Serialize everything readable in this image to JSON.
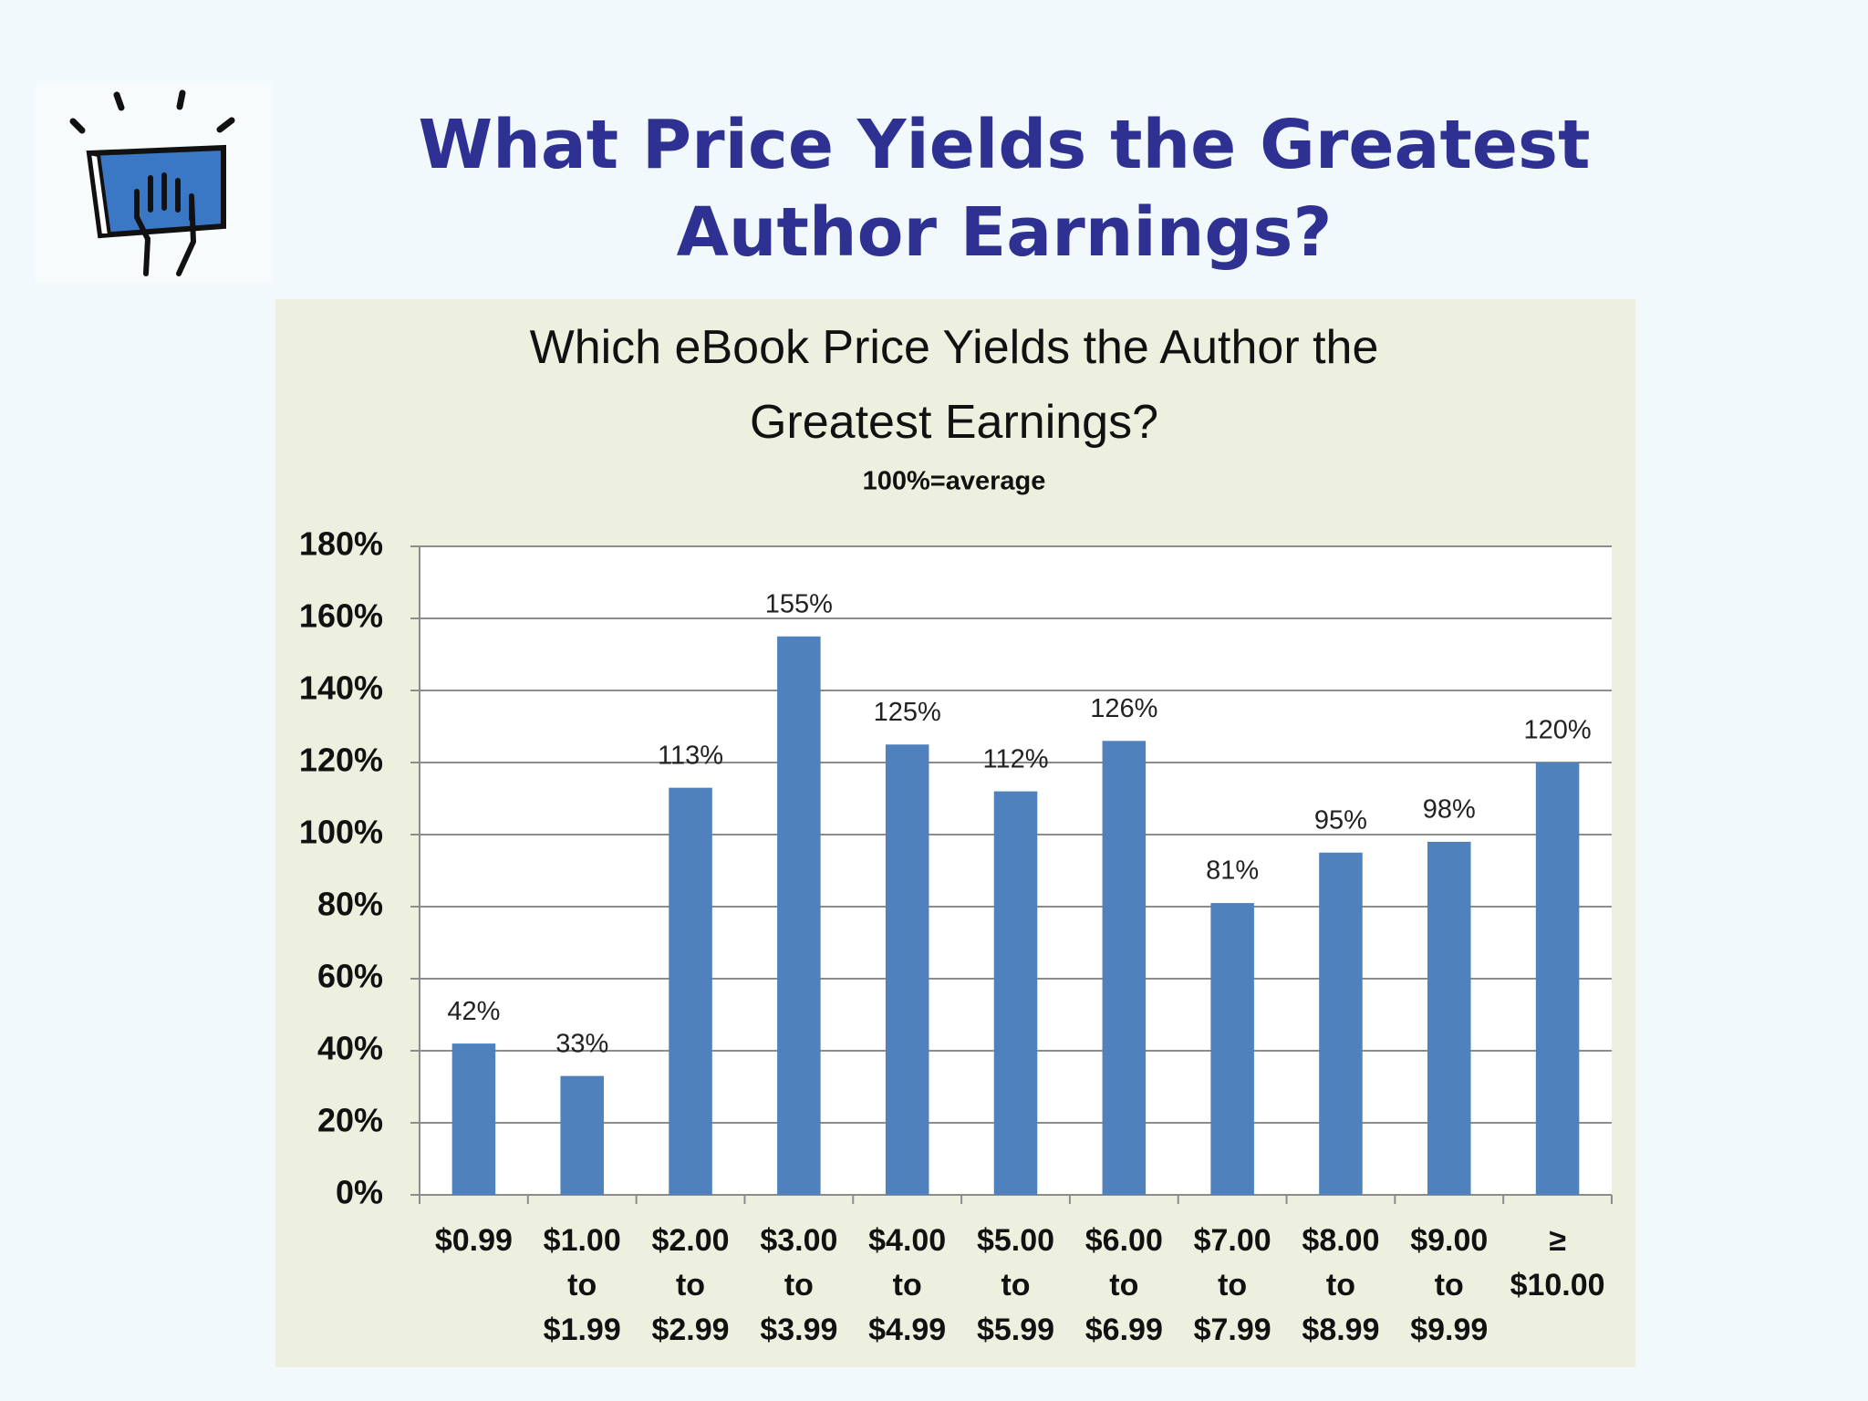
{
  "slide_title": "What Price Yields the Greatest Author Earnings?",
  "chart_data": {
    "type": "bar",
    "title": "Which eBook Price Yields the Author the Greatest Earnings?",
    "subtitle": "100%=average",
    "categories": [
      "$0.99",
      "$1.00 to $1.99",
      "$2.00 to $2.99",
      "$3.00 to $3.99",
      "$4.00 to $4.99",
      "$5.00 to $5.99",
      "$6.00 to $6.99",
      "$7.00 to $7.99",
      "$8.00 to $8.99",
      "$9.00 to $9.99",
      "≥ $10.00"
    ],
    "values": [
      42,
      33,
      113,
      155,
      125,
      112,
      126,
      81,
      95,
      98,
      120
    ],
    "value_labels": [
      "42%",
      "33%",
      "113%",
      "155%",
      "125%",
      "112%",
      "126%",
      "81%",
      "95%",
      "98%",
      "120%"
    ],
    "color": "#4f81bd",
    "ylim": [
      0,
      180
    ],
    "yticks": [
      {
        "value": 0,
        "label": "0%"
      },
      {
        "value": 20,
        "label": "20%"
      },
      {
        "value": 40,
        "label": "40%"
      },
      {
        "value": 60,
        "label": "60%"
      },
      {
        "value": 80,
        "label": "80%"
      },
      {
        "value": 100,
        "label": "100%"
      },
      {
        "value": 120,
        "label": "120%"
      },
      {
        "value": 140,
        "label": "140%"
      },
      {
        "value": 160,
        "label": "160%"
      },
      {
        "value": 180,
        "label": "180%"
      }
    ],
    "grid": true
  }
}
